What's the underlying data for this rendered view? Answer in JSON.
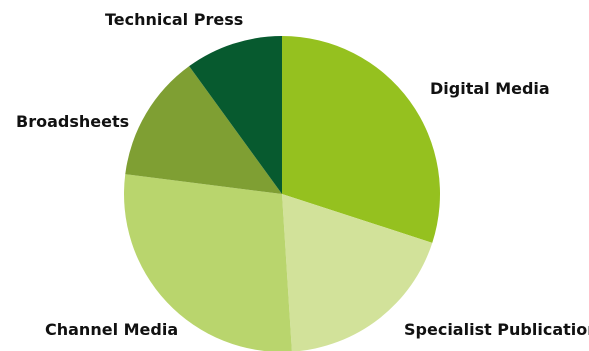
{
  "chart_data": {
    "type": "pie",
    "title": "",
    "slices": [
      {
        "label": "Digital Media",
        "value": 30,
        "color": "#95c11f"
      },
      {
        "label": "Specialist Publications",
        "value": 19,
        "color": "#d2e29a"
      },
      {
        "label": "Channel Media",
        "value": 28,
        "color": "#b9d56d"
      },
      {
        "label": "Broadsheets",
        "value": 13,
        "color": "#7f9f33"
      },
      {
        "label": "Technical Press",
        "value": 10,
        "color": "#075a2f"
      }
    ],
    "start_angle": "12 o'clock",
    "direction": "clockwise",
    "legend": "none"
  }
}
